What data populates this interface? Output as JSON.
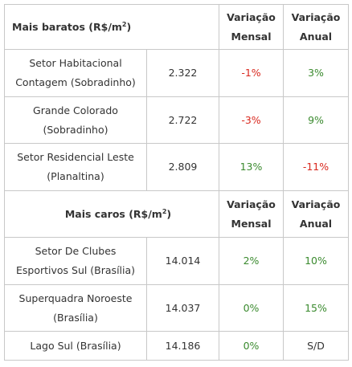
{
  "sections": [
    {
      "title": "Mais baratos (R$/m",
      "title_sup": "2",
      "title_end": ")",
      "header_monthly": [
        "Variação",
        "Mensal"
      ],
      "header_annual": [
        "Variação",
        "Anual"
      ],
      "rows": [
        {
          "name": [
            "Setor Habitacional",
            "Contagem (Sobradinho)"
          ],
          "price": "2.322",
          "monthly": "-1%",
          "annual": "3%",
          "monthly_color": "neg",
          "annual_color": "pos"
        },
        {
          "name": [
            "Grande Colorado",
            "(Sobradinho)"
          ],
          "price": "2.722",
          "monthly": "-3%",
          "annual": "9%",
          "monthly_color": "neg",
          "annual_color": "pos"
        },
        {
          "name": [
            "Setor Residencial Leste",
            "(Planaltina)"
          ],
          "price": "2.809",
          "monthly": "13%",
          "annual": "-11%",
          "monthly_color": "pos",
          "annual_color": "neg"
        }
      ]
    },
    {
      "title": "Mais caros (R$/m",
      "title_sup": "2",
      "title_end": ")",
      "header_monthly": [
        "Variação",
        "Mensal"
      ],
      "header_annual": [
        "Variação",
        "Anual"
      ],
      "rows": [
        {
          "name": [
            "Setor De Clubes",
            "Esportivos Sul (Brasília)"
          ],
          "price": "14.014",
          "monthly": "2%",
          "annual": "10%",
          "monthly_color": "pos",
          "annual_color": "pos"
        },
        {
          "name": [
            "Superquadra Noroeste",
            "(Brasília)"
          ],
          "price": "14.037",
          "monthly": "0%",
          "annual": "15%",
          "monthly_color": "pos",
          "annual_color": "pos"
        },
        {
          "name": [
            "Lago Sul (Brasília)"
          ],
          "price": "14.186",
          "monthly": "0%",
          "annual": "S/D",
          "monthly_color": "pos",
          "annual_color": "neutral"
        }
      ]
    }
  ]
}
